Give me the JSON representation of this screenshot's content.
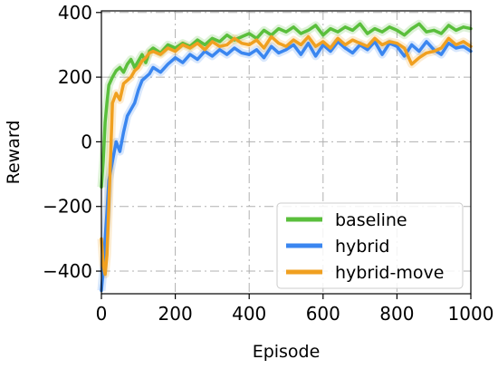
{
  "chart_data": {
    "type": "line",
    "title": "",
    "xlabel": "Episode",
    "ylabel": "Reward",
    "xlim": [
      0,
      1000
    ],
    "ylim": [
      -470,
      405
    ],
    "xticks": [
      0,
      200,
      400,
      600,
      800,
      1000
    ],
    "yticks": [
      -400,
      -200,
      0,
      200,
      400
    ],
    "x_tick_labels": [
      "0",
      "200",
      "400",
      "600",
      "800",
      "1000"
    ],
    "y_tick_labels": [
      "−400",
      "−200",
      "0",
      "200",
      "400"
    ],
    "grid": true,
    "legend_position": "lower-right",
    "series": [
      {
        "name": "baseline",
        "color": "#5abf3c",
        "x": [
          0,
          5,
          10,
          15,
          20,
          30,
          40,
          50,
          60,
          70,
          80,
          90,
          100,
          110,
          120,
          130,
          140,
          160,
          180,
          200,
          220,
          240,
          260,
          280,
          300,
          320,
          340,
          360,
          380,
          400,
          420,
          440,
          460,
          480,
          500,
          520,
          540,
          560,
          580,
          600,
          620,
          640,
          660,
          680,
          700,
          720,
          740,
          760,
          780,
          800,
          820,
          840,
          860,
          880,
          900,
          920,
          940,
          960,
          980,
          1000
        ],
        "values": [
          -140,
          -60,
          60,
          120,
          175,
          200,
          220,
          230,
          215,
          240,
          255,
          230,
          250,
          270,
          245,
          280,
          290,
          275,
          300,
          290,
          305,
          295,
          315,
          300,
          320,
          310,
          330,
          315,
          325,
          335,
          320,
          345,
          330,
          350,
          340,
          355,
          335,
          345,
          360,
          330,
          350,
          340,
          355,
          345,
          365,
          335,
          350,
          340,
          355,
          345,
          330,
          350,
          365,
          340,
          345,
          335,
          360,
          345,
          355,
          350
        ]
      },
      {
        "name": "hybrid",
        "color": "#3a86f0",
        "x": [
          0,
          5,
          10,
          15,
          20,
          30,
          40,
          50,
          60,
          70,
          80,
          90,
          100,
          110,
          120,
          130,
          140,
          160,
          180,
          200,
          220,
          240,
          260,
          280,
          300,
          320,
          340,
          360,
          380,
          400,
          420,
          440,
          460,
          480,
          500,
          520,
          540,
          560,
          580,
          600,
          620,
          640,
          660,
          680,
          700,
          720,
          740,
          760,
          780,
          800,
          820,
          840,
          860,
          880,
          900,
          920,
          940,
          960,
          980,
          1000
        ],
        "values": [
          -460,
          -400,
          -300,
          -220,
          -120,
          -60,
          0,
          -30,
          30,
          80,
          100,
          120,
          160,
          190,
          200,
          210,
          230,
          215,
          240,
          260,
          245,
          270,
          255,
          280,
          265,
          285,
          270,
          290,
          275,
          270,
          285,
          260,
          295,
          275,
          285,
          300,
          270,
          305,
          265,
          300,
          280,
          310,
          290,
          275,
          300,
          285,
          310,
          270,
          305,
          295,
          265,
          300,
          280,
          310,
          285,
          270,
          305,
          290,
          295,
          280
        ]
      },
      {
        "name": "hybrid-move",
        "color": "#f0a020",
        "x": [
          0,
          5,
          10,
          15,
          20,
          30,
          40,
          50,
          60,
          70,
          80,
          90,
          100,
          110,
          120,
          130,
          140,
          160,
          180,
          200,
          220,
          240,
          260,
          280,
          300,
          320,
          340,
          360,
          380,
          400,
          420,
          440,
          460,
          480,
          500,
          520,
          540,
          560,
          580,
          600,
          620,
          640,
          660,
          680,
          700,
          720,
          740,
          760,
          780,
          800,
          820,
          840,
          860,
          880,
          900,
          920,
          940,
          960,
          980,
          1000
        ],
        "values": [
          -300,
          -380,
          -410,
          -350,
          -200,
          120,
          150,
          130,
          180,
          190,
          200,
          220,
          230,
          250,
          260,
          275,
          280,
          270,
          290,
          280,
          300,
          290,
          305,
          285,
          310,
          295,
          300,
          320,
          305,
          300,
          315,
          290,
          325,
          305,
          295,
          315,
          300,
          325,
          295,
          310,
          290,
          320,
          300,
          315,
          305,
          295,
          320,
          300,
          310,
          305,
          290,
          240,
          260,
          275,
          280,
          290,
          320,
          300,
          310,
          295
        ]
      }
    ]
  }
}
